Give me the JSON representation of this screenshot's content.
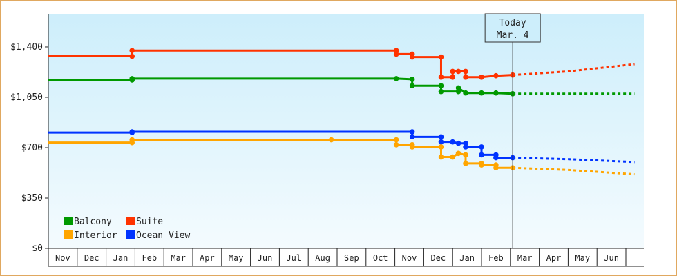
{
  "chart_data": {
    "type": "line",
    "title": "",
    "xlabel": "",
    "ylabel": "",
    "y_ticks": [
      "$0",
      "$350",
      "$700",
      "$1,050",
      "$1,400"
    ],
    "y_tick_values": [
      0,
      350,
      700,
      1050,
      1400
    ],
    "ylim": [
      0,
      1630
    ],
    "x_months": [
      "Nov",
      "Dec",
      "Jan",
      "Feb",
      "Mar",
      "Apr",
      "May",
      "Jun",
      "Jul",
      "Aug",
      "Sep",
      "Oct",
      "Nov",
      "Dec",
      "Jan",
      "Feb",
      "Mar",
      "Apr",
      "May",
      "Jun"
    ],
    "xlim_months": [
      0,
      20.3
    ],
    "grid": false,
    "legend_position": "bottom-left",
    "today_marker": {
      "line1": "Today",
      "line2": "Mar. 4",
      "x": 16.08
    },
    "series": [
      {
        "name": "Suite",
        "color": "#ff3300",
        "points": [
          [
            0,
            1335
          ],
          [
            2.9,
            1335
          ],
          [
            2.9,
            1375
          ],
          [
            12.05,
            1375
          ],
          [
            12.05,
            1350
          ],
          [
            12.6,
            1350
          ],
          [
            12.6,
            1330
          ],
          [
            13.6,
            1330
          ],
          [
            13.6,
            1190
          ],
          [
            14.0,
            1190
          ],
          [
            14.0,
            1230
          ],
          [
            14.2,
            1230
          ],
          [
            14.45,
            1230
          ],
          [
            14.45,
            1190
          ],
          [
            15.0,
            1190
          ],
          [
            15.5,
            1200
          ],
          [
            16.08,
            1205
          ]
        ],
        "forecast": [
          [
            16.08,
            1205
          ],
          [
            18.0,
            1230
          ],
          [
            20.3,
            1280
          ]
        ]
      },
      {
        "name": "Balcony",
        "color": "#009900",
        "points": [
          [
            0,
            1170
          ],
          [
            2.9,
            1170
          ],
          [
            2.9,
            1180
          ],
          [
            12.05,
            1180
          ],
          [
            12.6,
            1175
          ],
          [
            12.6,
            1130
          ],
          [
            13.6,
            1130
          ],
          [
            13.6,
            1090
          ],
          [
            14.2,
            1090
          ],
          [
            14.2,
            1115
          ],
          [
            14.45,
            1080
          ],
          [
            15.0,
            1080
          ],
          [
            15.5,
            1080
          ],
          [
            16.08,
            1075
          ]
        ],
        "forecast": [
          [
            16.08,
            1075
          ],
          [
            20.3,
            1075
          ]
        ]
      },
      {
        "name": "Ocean View",
        "color": "#0033ff",
        "points": [
          [
            0,
            805
          ],
          [
            2.9,
            805
          ],
          [
            2.9,
            810
          ],
          [
            12.6,
            810
          ],
          [
            12.6,
            775
          ],
          [
            13.6,
            775
          ],
          [
            13.6,
            740
          ],
          [
            14.0,
            740
          ],
          [
            14.2,
            730
          ],
          [
            14.45,
            730
          ],
          [
            14.45,
            705
          ],
          [
            15.0,
            705
          ],
          [
            15.0,
            650
          ],
          [
            15.5,
            650
          ],
          [
            15.5,
            630
          ],
          [
            16.08,
            630
          ]
        ],
        "forecast": [
          [
            16.08,
            630
          ],
          [
            18.0,
            620
          ],
          [
            20.3,
            600
          ]
        ]
      },
      {
        "name": "Interior",
        "color": "#ffa500",
        "points": [
          [
            0,
            735
          ],
          [
            2.9,
            735
          ],
          [
            2.9,
            755
          ],
          [
            9.8,
            755
          ],
          [
            12.05,
            755
          ],
          [
            12.05,
            720
          ],
          [
            12.6,
            720
          ],
          [
            12.6,
            705
          ],
          [
            13.6,
            705
          ],
          [
            13.6,
            635
          ],
          [
            14.0,
            635
          ],
          [
            14.2,
            660
          ],
          [
            14.45,
            650
          ],
          [
            14.45,
            590
          ],
          [
            15.0,
            590
          ],
          [
            15.0,
            580
          ],
          [
            15.5,
            580
          ],
          [
            15.5,
            560
          ],
          [
            16.08,
            560
          ]
        ],
        "forecast": [
          [
            16.08,
            560
          ],
          [
            18.0,
            545
          ],
          [
            20.3,
            515
          ]
        ]
      }
    ]
  }
}
